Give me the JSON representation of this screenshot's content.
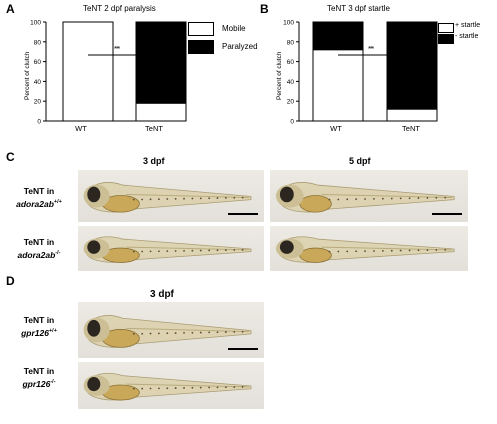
{
  "panels": {
    "A": {
      "letter": "A",
      "chart_data": {
        "type": "bar",
        "title": "TeNT 2 dpf paralysis",
        "ylabel": "Percent of clutch",
        "ylim": [
          0,
          100
        ],
        "yticks": [
          "0",
          "20",
          "40",
          "60",
          "80",
          "100"
        ],
        "categories": [
          "WT",
          "TeNT"
        ],
        "stacked": true,
        "series": [
          {
            "name": "Mobile",
            "color": "#ffffff",
            "values": [
              100,
              18
            ]
          },
          {
            "name": "Paralyzed",
            "color": "#000000",
            "values": [
              0,
              82
            ]
          }
        ],
        "annotation": "***",
        "legend": "top-right"
      }
    },
    "B": {
      "letter": "B",
      "chart_data": {
        "type": "bar",
        "title": "TeNT 3 dpf startle",
        "ylabel": "Percent of clutch",
        "ylim": [
          0,
          100
        ],
        "yticks": [
          "0",
          "20",
          "40",
          "60",
          "80",
          "100"
        ],
        "categories": [
          "WT",
          "TeNT"
        ],
        "stacked": true,
        "series": [
          {
            "name": "+ startle",
            "color": "#ffffff",
            "values": [
              72,
              12
            ]
          },
          {
            "name": "- startle",
            "color": "#000000",
            "values": [
              28,
              88
            ]
          }
        ],
        "annotation": "***",
        "legend": "top-right"
      }
    },
    "C": {
      "letter": "C",
      "col_titles": [
        "3 dpf",
        "5 dpf"
      ],
      "rows": [
        {
          "line1": "TeNT in",
          "gene": "adora2ab",
          "sup": "+/+"
        },
        {
          "line1": "TeNT in",
          "gene": "adora2ab",
          "sup": "-/-"
        }
      ]
    },
    "D": {
      "letter": "D",
      "col_titles": [
        "3 dpf"
      ],
      "rows": [
        {
          "line1": "TeNT in",
          "gene": "gpr126",
          "sup": "+/+"
        },
        {
          "line1": "TeNT in",
          "gene": "gpr126",
          "sup": "-/-"
        }
      ]
    }
  },
  "colors": {
    "fish_background": "#e6e4dd",
    "yolk": "#c9a85a",
    "eye": "#2b2720"
  }
}
